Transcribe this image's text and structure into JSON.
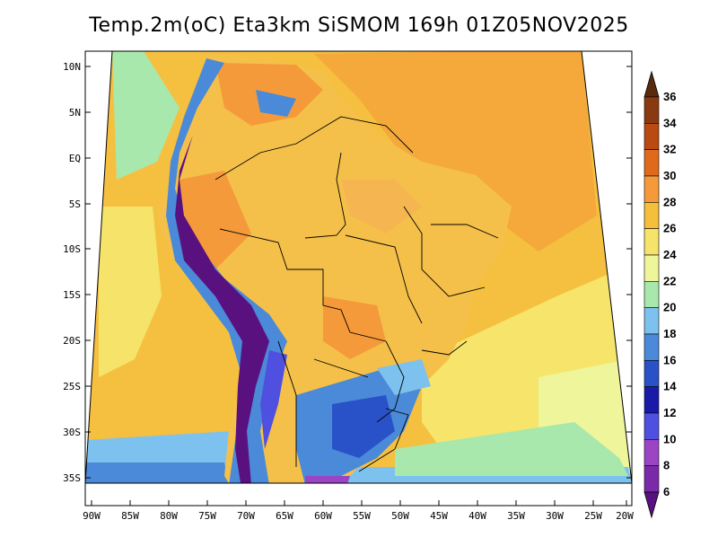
{
  "title": "Temp.2m(oC) Eta3km SiSMOM 169h 01Z05NOV2025",
  "map": {
    "variable": "2 m air temperature",
    "units": "oC",
    "lat_labels": [
      "10N",
      "5N",
      "EQ",
      "5S",
      "10S",
      "15S",
      "20S",
      "25S",
      "30S",
      "35S"
    ],
    "lon_labels": [
      "90W",
      "85W",
      "80W",
      "75W",
      "70W",
      "65W",
      "60W",
      "55W",
      "50W",
      "45W",
      "40W",
      "35W",
      "30W",
      "25W",
      "20W"
    ]
  },
  "colorbar": {
    "levels": [
      "6",
      "8",
      "10",
      "12",
      "14",
      "16",
      "18",
      "20",
      "22",
      "24",
      "26",
      "28",
      "30",
      "32",
      "34",
      "36"
    ],
    "colors": [
      "#5a1180",
      "#7a2aa8",
      "#9b45c5",
      "#5050e0",
      "#1a1aa8",
      "#2a52c8",
      "#4a8ad8",
      "#7dc2ee",
      "#a8e8ac",
      "#eef59a",
      "#f6e36a",
      "#f5bf3c",
      "#f59a3a",
      "#e06a1c",
      "#b84a12",
      "#8a3a10",
      "#5a2a0c"
    ]
  }
}
